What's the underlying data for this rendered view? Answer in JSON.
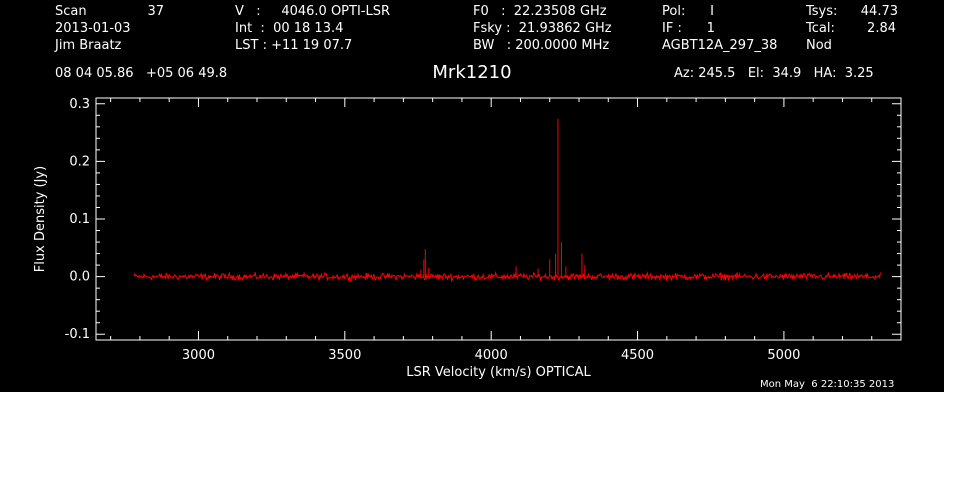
{
  "header": {
    "col1": {
      "scan_label": "Scan",
      "scan_value": "37",
      "date": "2013-01-03",
      "observer": "Jim Braatz"
    },
    "col2": {
      "v_line": "V   :     4046.0 OPTI-LSR",
      "int_line": "Int  :  00 18 13.4",
      "lst_line": "LST : +11 19 07.7"
    },
    "col3": {
      "f0_line": "F0   :  22.23508 GHz",
      "fsky_line": "Fsky :  21.93862 GHz",
      "bw_line": "BW   : 200.0000 MHz"
    },
    "col4": {
      "pol_line": "Pol:      I",
      "if_line": "IF :      1",
      "project": "AGBT12A_297_38"
    },
    "col5": {
      "tsys_label": "Tsys:",
      "tsys_value": "44.73",
      "tcal_label": "Tcal:",
      "tcal_value": "2.84",
      "mode": "Nod"
    },
    "coords": "08 04 05.86   +05 06 49.8",
    "source": "Mrk1210",
    "az_el_ha": "Az: 245.5   El:  34.9   HA:  3.25"
  },
  "timestamp": "Mon May  6 22:10:35 2013",
  "chart_data": {
    "type": "line",
    "title": "Mrk1210",
    "xlabel": "LSR Velocity (km/s) OPTICAL",
    "ylabel": "Flux Density (Jy)",
    "xlim": [
      2650,
      5400
    ],
    "ylim": [
      -0.11,
      0.31
    ],
    "x_ticks": [
      3000,
      3500,
      4000,
      4500,
      5000
    ],
    "x_tick_labels": [
      "3000",
      "3500",
      "4000",
      "4500",
      "5000"
    ],
    "y_ticks": [
      -0.1,
      0.0,
      0.1,
      0.2,
      0.3
    ],
    "y_tick_labels": [
      "-0.1",
      "0.0",
      "0.1",
      "0.2",
      "0.3"
    ],
    "grid": false,
    "series": [
      {
        "color": "#ff0000",
        "x_range": [
          2780,
          5330
        ],
        "baseline": 0.0,
        "noise_rms": 0.004,
        "features": [
          {
            "x": 3760,
            "y": 0.012
          },
          {
            "x": 3770,
            "y": 0.03
          },
          {
            "x": 3775,
            "y": 0.048
          },
          {
            "x": 3785,
            "y": 0.015
          },
          {
            "x": 4085,
            "y": 0.018
          },
          {
            "x": 4160,
            "y": 0.014
          },
          {
            "x": 4200,
            "y": 0.03
          },
          {
            "x": 4220,
            "y": 0.04
          },
          {
            "x": 4228,
            "y": 0.274
          },
          {
            "x": 4240,
            "y": 0.06
          },
          {
            "x": 4255,
            "y": 0.018
          },
          {
            "x": 4310,
            "y": 0.04
          },
          {
            "x": 4320,
            "y": 0.02
          }
        ]
      }
    ]
  }
}
